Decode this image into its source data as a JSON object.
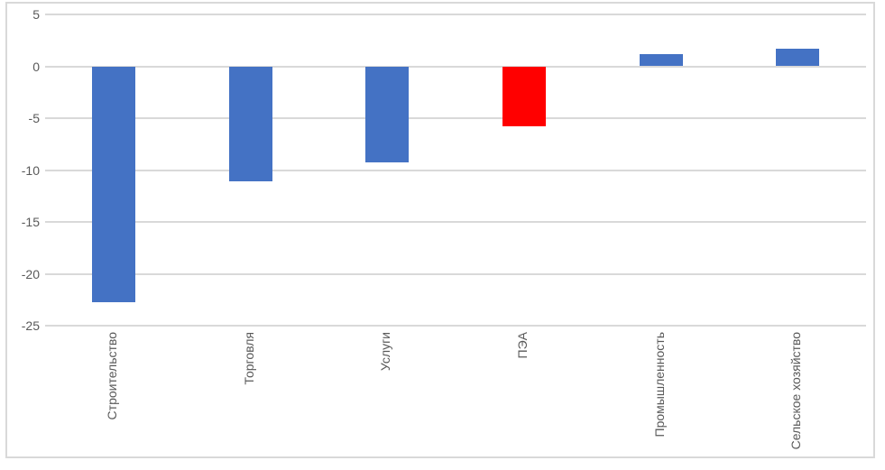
{
  "chart_data": {
    "type": "bar",
    "title": "",
    "xlabel": "",
    "ylabel": "",
    "categories": [
      "Строительство",
      "Торговля",
      "Услуги",
      "ПЭА",
      "Промышленность",
      "Сельское хозяйство"
    ],
    "values": [
      -22.7,
      -11.1,
      -9.3,
      -5.8,
      1.2,
      1.7
    ],
    "bar_colors": [
      "#4472C4",
      "#4472C4",
      "#4472C4",
      "#FF0000",
      "#4472C4",
      "#4472C4"
    ],
    "yticks": [
      5,
      0,
      -5,
      -10,
      -15,
      -20,
      -25
    ],
    "ylim": [
      -25,
      5
    ],
    "grid": true,
    "legend_position": "none",
    "tick_label_orientation": "x-vertical",
    "colors": {
      "bar_default": "#4472C4",
      "bar_highlight": "#FF0000",
      "gridline": "#D9D9D9",
      "frame_border": "#D9D9D9",
      "tick_text": "#595959",
      "background": "#FFFFFF"
    }
  }
}
